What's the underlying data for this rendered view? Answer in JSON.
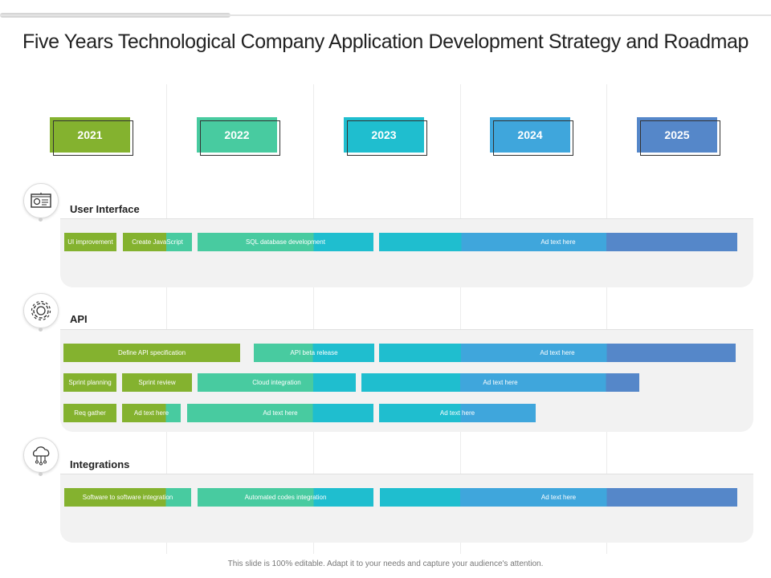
{
  "title": "Five Years Technological Company Application Development Strategy and Roadmap",
  "footer": "This slide is 100% editable. Adapt it to your needs and capture your audience's attention.",
  "colors": {
    "green": "#84b22f",
    "mint": "#48cba0",
    "cyan": "#1fbecf",
    "sky": "#3fa6dc",
    "blue": "#5587c9"
  },
  "years": [
    "2021",
    "2022",
    "2023",
    "2024",
    "2025"
  ],
  "sections": [
    {
      "label": "User Interface",
      "icon": "presentation-board-icon",
      "rows": [
        [
          "UI improvement",
          "Create JavaScript",
          "SQL database development",
          "Ad text here"
        ]
      ]
    },
    {
      "label": "API",
      "icon": "gear-icon",
      "rows": [
        [
          "Define API specification",
          "API beta release",
          "Ad text here"
        ],
        [
          "Sprint planning",
          "Sprint review",
          "Cloud integration",
          "Ad text here"
        ],
        [
          "Req gather",
          "Ad text here",
          "Ad text here",
          "Ad text here"
        ]
      ]
    },
    {
      "label": "Integrations",
      "icon": "cloud-network-icon",
      "rows": [
        [
          "Software to software integration",
          "Automated codes integration",
          "Ad text here"
        ]
      ]
    }
  ]
}
